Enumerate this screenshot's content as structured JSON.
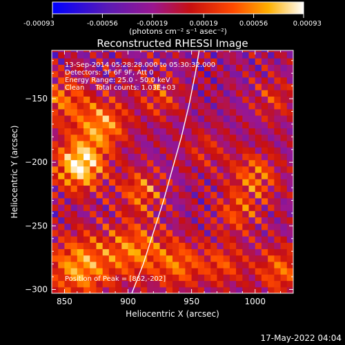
{
  "chart_data": {
    "type": "heatmap",
    "title": "Reconstructed RHESSI Image",
    "xlabel": "Heliocentric X (arcsec)",
    "ylabel": "Heliocentric Y (arcsec)",
    "xlim": [
      840,
      1030
    ],
    "ylim": [
      -303,
      -112
    ],
    "x_ticks": [
      850,
      900,
      950,
      1000
    ],
    "y_ticks": [
      -150,
      -200,
      -250,
      -300
    ],
    "colorbar": {
      "unit_label": "(photons cm⁻² s⁻¹ asec⁻²)",
      "range": [
        -0.00093,
        0.00093
      ],
      "tick_values": [
        -0.00093,
        -0.00056,
        -0.00019,
        0.00019,
        0.00056,
        0.00093
      ],
      "tick_labels": [
        "-0.00093",
        "-0.00056",
        "-0.00019",
        "0.00019",
        "0.00056",
        "0.00093"
      ],
      "stops": [
        {
          "v": 0.0,
          "color": "#0000ff"
        },
        {
          "v": 0.22,
          "color": "#5a1ab5"
        },
        {
          "v": 0.4,
          "color": "#9a1690"
        },
        {
          "v": 0.55,
          "color": "#c81010"
        },
        {
          "v": 0.72,
          "color": "#ff4a00"
        },
        {
          "v": 0.86,
          "color": "#ffb000"
        },
        {
          "v": 1.0,
          "color": "#ffffff"
        }
      ]
    },
    "annotations": [
      "13-Sep-2014 05:28:28.000 to 05:30:32.000",
      "Detectors: 3F 6F 9F, Att 0",
      "Energy Range: 25.0 - 50.0 keV",
      "Clean     Total counts: 1.03E+03"
    ],
    "peak_label": "Position of Peak = [862,-202]",
    "peak": {
      "x": 862,
      "y": -202
    },
    "blobs": [
      {
        "x": 862,
        "y": -202,
        "amp": 1.0,
        "s": 14
      },
      {
        "x": 880,
        "y": -170,
        "amp": 0.7,
        "s": 14
      },
      {
        "x": 848,
        "y": -150,
        "amp": 0.55,
        "s": 14
      },
      {
        "x": 862,
        "y": -282,
        "amp": 0.75,
        "s": 18
      },
      {
        "x": 905,
        "y": -268,
        "amp": 0.6,
        "s": 16
      },
      {
        "x": 910,
        "y": -222,
        "amp": 0.55,
        "s": 12
      },
      {
        "x": 925,
        "y": -150,
        "amp": 0.4,
        "s": 12
      },
      {
        "x": 940,
        "y": -280,
        "amp": 0.55,
        "s": 14
      },
      {
        "x": 1000,
        "y": -210,
        "amp": 0.55,
        "s": 14
      },
      {
        "x": 985,
        "y": -240,
        "amp": 0.45,
        "s": 12
      },
      {
        "x": 1020,
        "y": -285,
        "amp": 0.55,
        "s": 14
      },
      {
        "x": 975,
        "y": -280,
        "amp": 0.45,
        "s": 12
      },
      {
        "x": 960,
        "y": -190,
        "amp": 0.3,
        "s": 12
      },
      {
        "x": 1015,
        "y": -150,
        "amp": 0.35,
        "s": 12
      }
    ],
    "limb_arc": [
      {
        "x": 903,
        "y": -303
      },
      {
        "x": 912,
        "y": -280
      },
      {
        "x": 920,
        "y": -255
      },
      {
        "x": 928,
        "y": -230
      },
      {
        "x": 935,
        "y": -205
      },
      {
        "x": 942,
        "y": -180
      },
      {
        "x": 948,
        "y": -155
      },
      {
        "x": 953,
        "y": -130
      },
      {
        "x": 956,
        "y": -112
      }
    ]
  },
  "footer": {
    "timestamp": "17-May-2022 04:04"
  }
}
